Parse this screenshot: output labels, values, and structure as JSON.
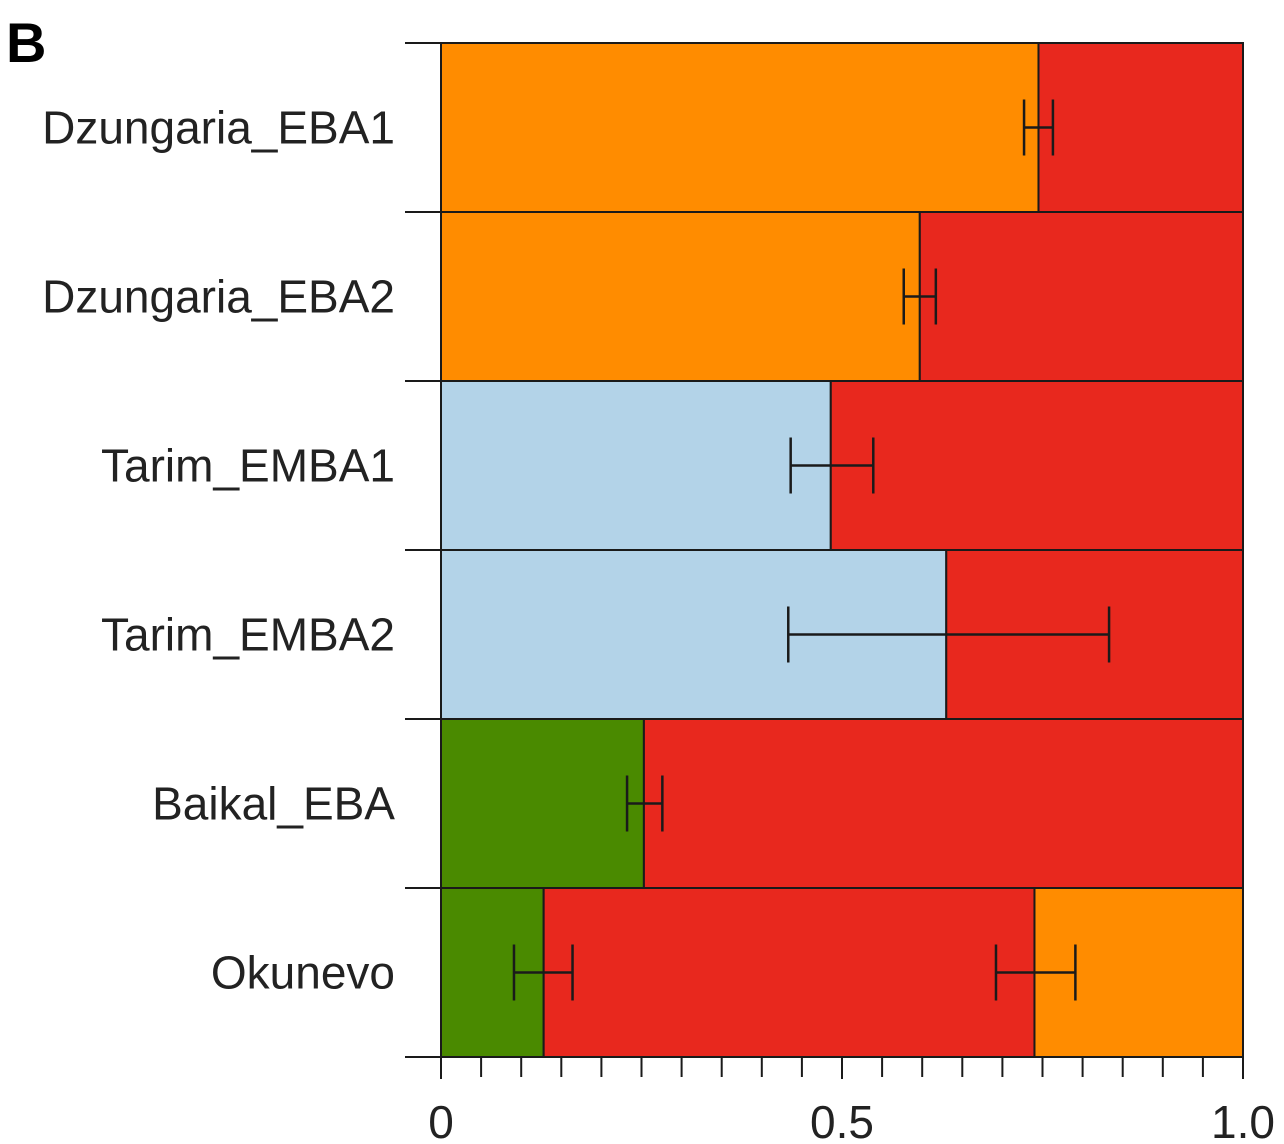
{
  "panel_label": "B",
  "chart_data": {
    "type": "bar",
    "orientation": "horizontal",
    "stacked": true,
    "xlim": [
      0,
      1.0
    ],
    "x_ticks": [
      0,
      0.5,
      1.0
    ],
    "x_tick_labels": [
      "0",
      "0.5",
      "1.0"
    ],
    "x_minor_tick_step": 0.05,
    "grid": false,
    "colors": {
      "orange": "#FF8C00",
      "red": "#E8281E",
      "lightblue": "#B3D3E8",
      "green": "#4A8A00"
    },
    "categories": [
      "Dzungaria_EBA1",
      "Dzungaria_EBA2",
      "Tarim_EMBA1",
      "Tarim_EMBA2",
      "Baikal_EBA",
      "Okunevo"
    ],
    "rows": [
      {
        "label": "Dzungaria_EBA1",
        "segments": [
          {
            "color": "orange",
            "value": 0.745,
            "error": [
              0.727,
              0.763
            ]
          },
          {
            "color": "red",
            "value": 0.255
          }
        ]
      },
      {
        "label": "Dzungaria_EBA2",
        "segments": [
          {
            "color": "orange",
            "value": 0.597,
            "error": [
              0.577,
              0.617
            ]
          },
          {
            "color": "red",
            "value": 0.403
          }
        ]
      },
      {
        "label": "Tarim_EMBA1",
        "segments": [
          {
            "color": "lightblue",
            "value": 0.486,
            "error": [
              0.436,
              0.539
            ]
          },
          {
            "color": "red",
            "value": 0.514
          }
        ]
      },
      {
        "label": "Tarim_EMBA2",
        "segments": [
          {
            "color": "lightblue",
            "value": 0.63,
            "error": [
              0.433,
              0.833
            ]
          },
          {
            "color": "red",
            "value": 0.37
          }
        ]
      },
      {
        "label": "Baikal_EBA",
        "segments": [
          {
            "color": "green",
            "value": 0.253,
            "error": [
              0.232,
              0.276
            ]
          },
          {
            "color": "red",
            "value": 0.747
          }
        ]
      },
      {
        "label": "Okunevo",
        "segments": [
          {
            "color": "green",
            "value": 0.128,
            "error": [
              0.091,
              0.164
            ]
          },
          {
            "color": "red",
            "value": 0.612
          },
          {
            "color": "orange",
            "value": 0.26,
            "error": [
              0.692,
              0.791
            ],
            "error_at_boundary": 0.74
          }
        ]
      }
    ]
  }
}
